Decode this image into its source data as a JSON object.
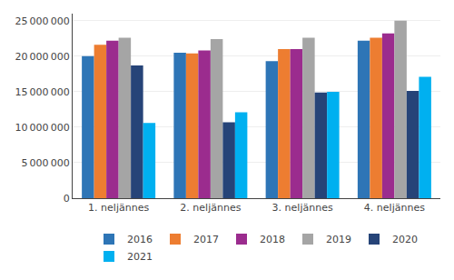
{
  "chart_data": {
    "type": "bar",
    "categories": [
      "1. neljännes",
      "2. neljännes",
      "3. neljännes",
      "4. neljännes"
    ],
    "series": [
      {
        "name": "2016",
        "color": "#2E75B6",
        "values": [
          20000000,
          20500000,
          19300000,
          22200000
        ]
      },
      {
        "name": "2017",
        "color": "#ED7D31",
        "values": [
          21600000,
          20400000,
          21000000,
          22600000
        ]
      },
      {
        "name": "2018",
        "color": "#9B2C8E",
        "values": [
          22200000,
          20800000,
          21000000,
          23200000
        ]
      },
      {
        "name": "2019",
        "color": "#A5A5A5",
        "values": [
          22600000,
          22400000,
          22600000,
          25000000
        ]
      },
      {
        "name": "2020",
        "color": "#264478",
        "values": [
          18700000,
          10700000,
          14900000,
          15100000
        ]
      },
      {
        "name": "2021",
        "color": "#00B0F0",
        "values": [
          10600000,
          12100000,
          15000000,
          17100000
        ]
      }
    ],
    "ylim": [
      0,
      26000000
    ],
    "yticks": [
      0,
      {
        "value": 5000000,
        "label": "5 000 000"
      },
      {
        "value": 10000000,
        "label": "10 000 000"
      },
      {
        "value": 15000000,
        "label": "15 000 000"
      },
      {
        "value": 20000000,
        "label": "20 000 000"
      },
      {
        "value": 25000000,
        "label": "25 000 000"
      }
    ],
    "grid": true,
    "legend": "bottom"
  }
}
